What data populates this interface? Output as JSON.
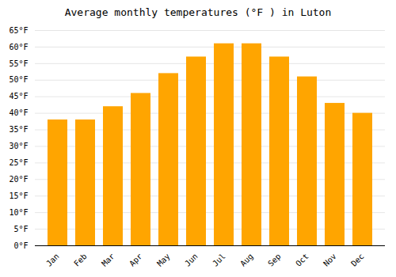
{
  "chart_data": {
    "type": "bar",
    "title": "Average monthly temperatures (°F ) in Luton",
    "categories": [
      "Jan",
      "Feb",
      "Mar",
      "Apr",
      "May",
      "Jun",
      "Jul",
      "Aug",
      "Sep",
      "Oct",
      "Nov",
      "Dec"
    ],
    "values": [
      38,
      38,
      42,
      46,
      52,
      57,
      61,
      61,
      57,
      51,
      43,
      40
    ],
    "color": "#FFA500",
    "ylim": [
      0,
      65
    ],
    "yticks": [
      {
        "value": 0,
        "label": "0°F"
      },
      {
        "value": 5,
        "label": "5°F"
      },
      {
        "value": 10,
        "label": "10°F"
      },
      {
        "value": 15,
        "label": "15°F"
      },
      {
        "value": 20,
        "label": "20°F"
      },
      {
        "value": 25,
        "label": "25°F"
      },
      {
        "value": 30,
        "label": "30°F"
      },
      {
        "value": 35,
        "label": "35°F"
      },
      {
        "value": 40,
        "label": "40°F"
      },
      {
        "value": 45,
        "label": "45°F"
      },
      {
        "value": 50,
        "label": "50°F"
      },
      {
        "value": 55,
        "label": "55°F"
      },
      {
        "value": 60,
        "label": "60°F"
      },
      {
        "value": 65,
        "label": "65°F"
      }
    ],
    "grid": true
  }
}
